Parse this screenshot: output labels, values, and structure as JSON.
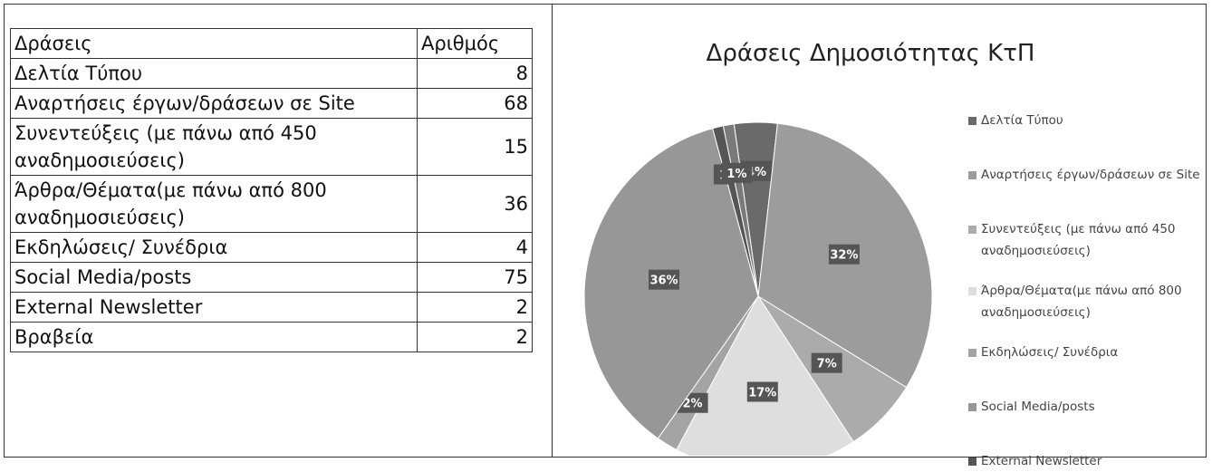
{
  "table": {
    "header": [
      "Δράσεις",
      "Αριθμός"
    ],
    "rows": [
      [
        "Δελτία Τύπου",
        8
      ],
      [
        "Αναρτήσεις έργων/δράσεων σε Site",
        68
      ],
      [
        "Συνεντεύξεις (με πάνω από 450 αναδημοσιεύσεις)",
        15
      ],
      [
        "Άρθρα/Θέματα(με πάνω από 800 αναδημοσιεύσεις)",
        36
      ],
      [
        "Εκδηλώσεις/ Συνέδρια",
        4
      ],
      [
        "Social Media/posts",
        75
      ],
      [
        "External Newsletter",
        2
      ],
      [
        "Βραβεία",
        2
      ]
    ]
  },
  "chart_data": {
    "type": "pie",
    "title": "Δράσεις Δημοσιότητας ΚτΠ",
    "categories": [
      "Δελτία Τύπου",
      "Αναρτήσεις έργων/δράσεων σε Site",
      "Συνεντεύξεις (με πάνω από 450 αναδημοσιεύσεις)",
      "Άρθρα/Θέματα(με πάνω από 800 αναδημοσιεύσεις)",
      "Εκδηλώσεις/ Συνέδρια",
      "Social Media/posts",
      "External Newsletter",
      null
    ],
    "values": [
      4,
      32,
      7,
      17,
      2,
      36,
      1,
      1
    ],
    "value_labels": [
      "4%",
      "32%",
      "7%",
      "17%",
      "2%",
      "36%",
      "1%",
      "1%"
    ],
    "colors": [
      "#6a6a6a",
      "#9c9c9c",
      "#ababab",
      "#dedede",
      "#a4a4a4",
      "#979797",
      "#555555",
      "#7a7a7a"
    ],
    "legend": "right"
  }
}
